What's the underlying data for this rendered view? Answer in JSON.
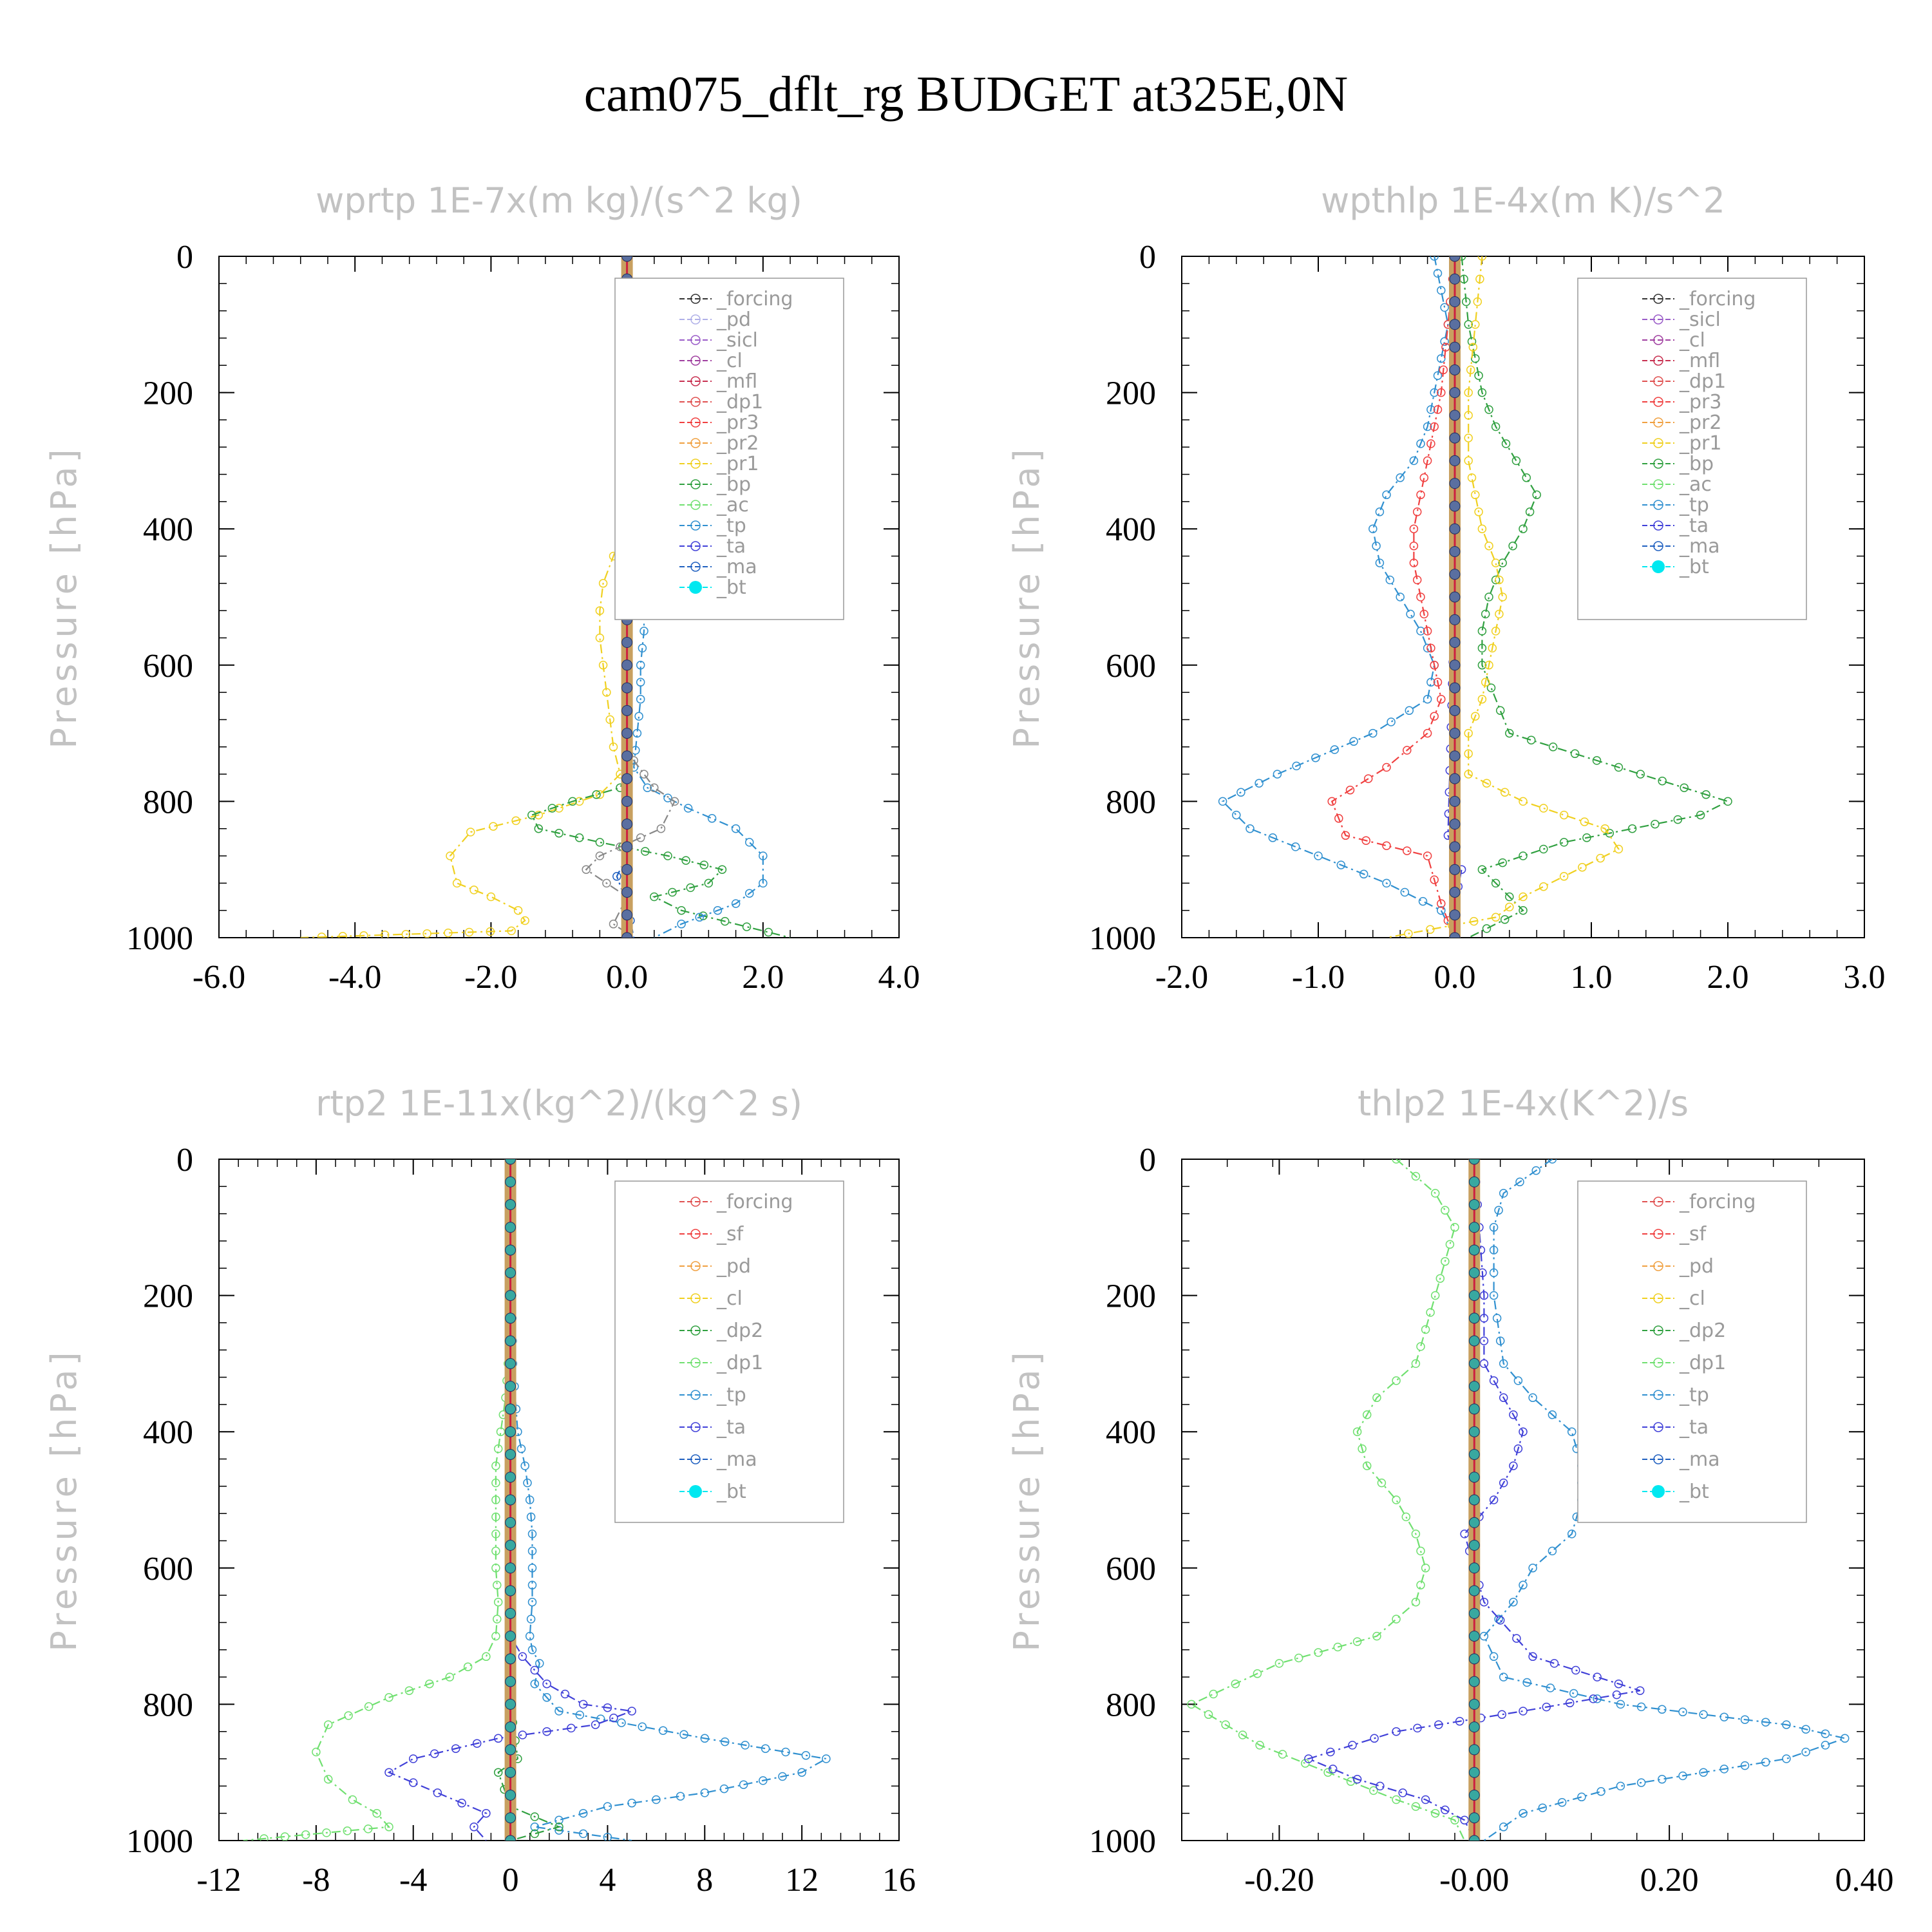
{
  "title": "cam075_dflt_rg  BUDGET at325E,0N",
  "colors": {
    "forcing_black": "#222222",
    "pd": "#b0b0e8",
    "sicl": "#9a5cc8",
    "cl": "#a040a0",
    "mfl": "#c83050",
    "dp1_red": "#e05050",
    "pr3": "#f04040",
    "pr2": "#f0a040",
    "pr1": "#f0d020",
    "bp": "#30a040",
    "ac": "#70e070",
    "tp": "#3090d0",
    "ta": "#4040d8",
    "ma": "#2060c0",
    "bt": "#00f0f0"
  },
  "chart_data": [
    {
      "type": "line",
      "title": "wprtp  1E-7x(m kg)/(s^2 kg)",
      "ylabel": "Pressure [hPa]",
      "xlim": [
        -6,
        4
      ],
      "ylim": [
        0,
        1000
      ],
      "xticks": [
        "-6.0",
        "-4.0",
        "-2.0",
        "0.0",
        "2.0",
        "4.0"
      ],
      "yticks": [
        "0",
        "200",
        "400",
        "600",
        "800",
        "1000"
      ],
      "legend": [
        "_forcing",
        "_pd",
        "_sicl",
        "_cl",
        "_mfl",
        "_dp1",
        "_pr3",
        "_pr2",
        "_pr1",
        "_bp",
        "_ac",
        "_tp",
        "_ta",
        "_ma",
        "_bt"
      ],
      "series": [
        {
          "key": "pr1",
          "x": [
            0,
            0,
            0,
            0,
            0,
            -0.05,
            -0.2,
            -0.35,
            -0.4,
            -0.4,
            -0.35,
            -0.3,
            -0.25,
            -0.2,
            -0.1,
            -0.4,
            -1.3,
            -2.3,
            -2.6,
            -2.5,
            -2.0,
            -1.6,
            -1.5,
            -1.7,
            -4.8
          ],
          "y": [
            0,
            100,
            200,
            300,
            360,
            400,
            440,
            480,
            520,
            560,
            600,
            640,
            680,
            720,
            760,
            790,
            820,
            845,
            880,
            920,
            940,
            960,
            975,
            990,
            1000
          ]
        },
        {
          "key": "bp",
          "x": [
            0,
            0,
            0,
            0,
            0,
            0,
            0,
            0,
            0,
            0,
            -0.1,
            -0.8,
            -1.4,
            -1.3,
            -0.4,
            0.6,
            1.4,
            1.2,
            0.4,
            0.8,
            2.4
          ],
          "y": [
            0,
            200,
            400,
            500,
            600,
            650,
            700,
            720,
            740,
            760,
            780,
            800,
            820,
            840,
            860,
            880,
            900,
            920,
            940,
            960,
            1000
          ]
        },
        {
          "key": "tp",
          "x": [
            0,
            0.05,
            0.1,
            0.15,
            0.2,
            0.25,
            0.25,
            0.2,
            0.2,
            0.15,
            0.1,
            0.3,
            0.9,
            1.6,
            2.0,
            2.0,
            1.6,
            0.8,
            0.4
          ],
          "y": [
            0,
            100,
            200,
            300,
            400,
            500,
            550,
            600,
            650,
            700,
            750,
            780,
            810,
            840,
            880,
            920,
            950,
            980,
            1000
          ]
        },
        {
          "key": "dp1",
          "x": [
            0,
            0,
            0,
            0.1,
            0.4,
            0.7,
            0.5,
            -0.4,
            -0.6,
            -0.3,
            0,
            -0.2,
            0.1
          ],
          "y": [
            0,
            600,
            700,
            740,
            780,
            800,
            840,
            880,
            900,
            920,
            940,
            980,
            1000
          ]
        },
        {
          "key": "ma",
          "x": [
            0,
            0,
            0,
            -0.15,
            0,
            0.1
          ],
          "y": [
            0,
            800,
            880,
            910,
            950,
            1000
          ]
        },
        {
          "key": "forcing_black",
          "x": [
            0,
            0
          ],
          "y": [
            0,
            1000
          ]
        }
      ]
    },
    {
      "type": "line",
      "title": "wpthlp  1E-4x(m K)/s^2",
      "ylabel": "Pressure [hPa]",
      "xlim": [
        -2,
        3
      ],
      "ylim": [
        0,
        1000
      ],
      "xticks": [
        "-2.0",
        "-1.0",
        "0.0",
        "1.0",
        "2.0",
        "3.0"
      ],
      "yticks": [
        "0",
        "200",
        "400",
        "600",
        "800",
        "1000"
      ],
      "legend": [
        "_forcing",
        "_sicl",
        "_cl",
        "_mfl",
        "_dp1",
        "_pr3",
        "_pr2",
        "_pr1",
        "_bp",
        "_ac",
        "_tp",
        "_ta",
        "_ma",
        "_bt"
      ],
      "series": [
        {
          "key": "tp",
          "x": [
            -0.15,
            -0.1,
            -0.05,
            -0.1,
            -0.15,
            -0.2,
            -0.3,
            -0.5,
            -0.6,
            -0.55,
            -0.4,
            -0.25,
            -0.15,
            -0.2,
            -0.6,
            -1.3,
            -1.7,
            -1.5,
            -1.0,
            -0.5,
            -0.1,
            0
          ],
          "y": [
            0,
            50,
            100,
            150,
            200,
            250,
            300,
            350,
            400,
            450,
            500,
            550,
            600,
            650,
            700,
            760,
            800,
            840,
            880,
            920,
            960,
            1000
          ]
        },
        {
          "key": "pr3",
          "x": [
            0,
            -0.05,
            -0.1,
            -0.15,
            -0.2,
            -0.25,
            -0.3,
            -0.3,
            -0.25,
            -0.2,
            -0.15,
            -0.1,
            -0.2,
            -0.5,
            -0.9,
            -0.8,
            -0.2,
            -0.1,
            0
          ],
          "y": [
            0,
            100,
            200,
            250,
            300,
            350,
            400,
            450,
            500,
            550,
            600,
            650,
            700,
            750,
            800,
            850,
            880,
            950,
            1000
          ]
        },
        {
          "key": "bp",
          "x": [
            0.05,
            0.1,
            0.15,
            0.2,
            0.3,
            0.45,
            0.6,
            0.5,
            0.35,
            0.25,
            0.2,
            0.2,
            0.4,
            1.2,
            2.0,
            1.8,
            0.8,
            0.2,
            0.5,
            0.1
          ],
          "y": [
            0,
            100,
            150,
            200,
            250,
            300,
            350,
            400,
            450,
            500,
            550,
            600,
            700,
            750,
            800,
            820,
            860,
            900,
            960,
            1000
          ]
        },
        {
          "key": "pr1",
          "x": [
            0.2,
            0.15,
            0.1,
            0.1,
            0.15,
            0.2,
            0.3,
            0.35,
            0.3,
            0.25,
            0.2,
            0.1,
            0.1,
            0.5,
            1.1,
            1.2,
            0.8,
            0.5,
            0.3,
            -0.5
          ],
          "y": [
            0,
            100,
            200,
            300,
            350,
            400,
            450,
            500,
            550,
            600,
            650,
            700,
            760,
            800,
            840,
            870,
            910,
            940,
            970,
            1000
          ]
        },
        {
          "key": "ta",
          "x": [
            0,
            0,
            -0.05,
            0.05,
            0,
            0
          ],
          "y": [
            0,
            500,
            850,
            900,
            950,
            1000
          ]
        },
        {
          "key": "forcing_black",
          "x": [
            0,
            0
          ],
          "y": [
            0,
            1000
          ]
        }
      ]
    },
    {
      "type": "line",
      "title": "rtp2  1E-11x(kg^2)/(kg^2 s)",
      "ylabel": "Pressure [hPa]",
      "xlim": [
        -12,
        16
      ],
      "ylim": [
        0,
        1000
      ],
      "xticks": [
        "-12",
        "-8",
        "-4",
        "0",
        "4",
        "8",
        "12",
        "16"
      ],
      "yticks": [
        "0",
        "200",
        "400",
        "600",
        "800",
        "1000"
      ],
      "legend": [
        "_forcing",
        "_sf",
        "_pd",
        "_cl",
        "_dp2",
        "_dp1",
        "_tp",
        "_ta",
        "_ma",
        "_bt"
      ],
      "series": [
        {
          "key": "ac",
          "x": [
            0,
            0,
            -0.1,
            -0.2,
            -0.4,
            -0.6,
            -0.6,
            -0.6,
            -0.6,
            -0.5,
            -0.6,
            -1.0,
            -2.5,
            -5.0,
            -7.5,
            -8.0,
            -7.5,
            -6.5,
            -5.5,
            -5.0,
            -11
          ],
          "y": [
            0,
            200,
            300,
            350,
            400,
            450,
            500,
            550,
            600,
            650,
            700,
            730,
            760,
            790,
            830,
            870,
            910,
            940,
            960,
            980,
            1000
          ]
        },
        {
          "key": "tp",
          "x": [
            0,
            0.1,
            0.3,
            0.6,
            0.8,
            0.9,
            0.9,
            0.9,
            0.8,
            0.9,
            1.2,
            1.0,
            2.0,
            8.0,
            13.0,
            12.0,
            8.0,
            4.0,
            1.0,
            5.0
          ],
          "y": [
            0,
            300,
            400,
            450,
            500,
            550,
            600,
            650,
            700,
            720,
            740,
            770,
            810,
            850,
            880,
            900,
            930,
            950,
            980,
            1000
          ]
        },
        {
          "key": "ta",
          "x": [
            0,
            0,
            0.5,
            1.5,
            3.0,
            5.0,
            3.5,
            -0.5,
            -4.0,
            -5.0,
            -3.0,
            -1.0,
            -1.5,
            -1.0
          ],
          "y": [
            0,
            700,
            730,
            770,
            800,
            810,
            830,
            850,
            880,
            900,
            930,
            960,
            980,
            1000
          ]
        },
        {
          "key": "bp",
          "x": [
            0,
            0,
            0.3,
            -0.5,
            0,
            2.0,
            0
          ],
          "y": [
            0,
            800,
            880,
            900,
            950,
            980,
            1000
          ]
        },
        {
          "key": "mfl",
          "x": [
            0,
            0
          ],
          "y": [
            0,
            1000
          ]
        }
      ]
    },
    {
      "type": "line",
      "title": "thlp2  1E-4x(K^2)/s",
      "ylabel": "Pressure [hPa]",
      "xlim": [
        -0.3,
        0.4
      ],
      "ylim": [
        0,
        1000
      ],
      "xticks": [
        "-0.20",
        "-0.00",
        "0.20",
        "0.40"
      ],
      "yticks": [
        "0",
        "200",
        "400",
        "600",
        "800",
        "1000"
      ],
      "legend": [
        "_forcing",
        "_sf",
        "_pd",
        "_cl",
        "_dp2",
        "_dp1",
        "_tp",
        "_ta",
        "_ma",
        "_bt"
      ],
      "series": [
        {
          "key": "ac",
          "x": [
            -0.08,
            -0.04,
            -0.02,
            -0.03,
            -0.04,
            -0.05,
            -0.06,
            -0.1,
            -0.12,
            -0.11,
            -0.08,
            -0.06,
            -0.05,
            -0.06,
            -0.1,
            -0.2,
            -0.29,
            -0.22,
            -0.15,
            -0.08,
            -0.02,
            -0.01
          ],
          "y": [
            0,
            50,
            100,
            150,
            200,
            250,
            300,
            350,
            400,
            450,
            500,
            550,
            600,
            650,
            700,
            740,
            800,
            860,
            900,
            940,
            970,
            1000
          ]
        },
        {
          "key": "tp",
          "x": [
            0.08,
            0.03,
            0.02,
            0.02,
            0.03,
            0.06,
            0.1,
            0.11,
            0.11,
            0.1,
            0.06,
            0.04,
            0.01,
            0.03,
            0.15,
            0.32,
            0.38,
            0.32,
            0.15,
            0.05,
            0.01
          ],
          "y": [
            0,
            50,
            100,
            200,
            300,
            350,
            400,
            450,
            500,
            550,
            600,
            650,
            700,
            760,
            800,
            830,
            850,
            880,
            920,
            960,
            1000
          ]
        },
        {
          "key": "ta",
          "x": [
            0,
            0.01,
            0.01,
            0.03,
            0.05,
            0.04,
            0.02,
            -0.01,
            0,
            0.01,
            0.06,
            0.17,
            0.05,
            -0.08,
            -0.17,
            -0.12,
            -0.05,
            -0.01,
            0
          ],
          "y": [
            0,
            200,
            300,
            350,
            400,
            450,
            500,
            550,
            600,
            650,
            730,
            780,
            810,
            840,
            880,
            910,
            940,
            970,
            1000
          ]
        },
        {
          "key": "mfl",
          "x": [
            0,
            0
          ],
          "y": [
            0,
            1000
          ]
        }
      ]
    }
  ]
}
